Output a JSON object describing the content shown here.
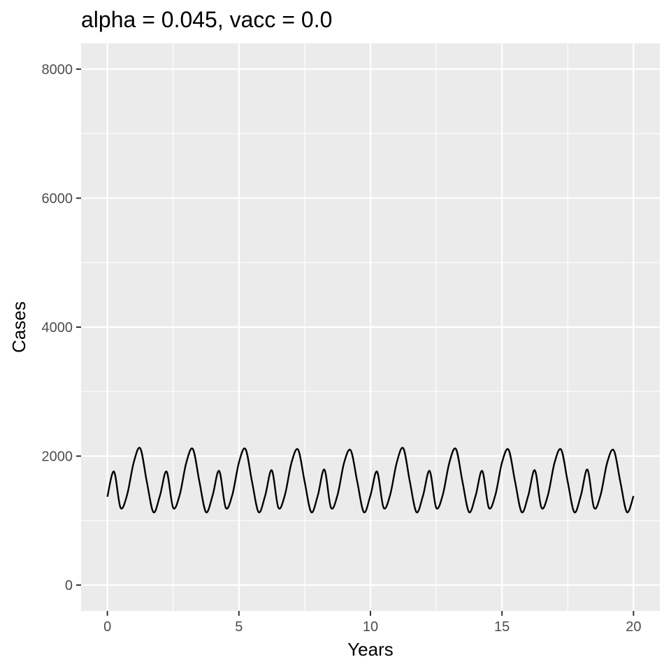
{
  "chart_data": {
    "type": "line",
    "title": "alpha = 0.045, vacc = 0.0",
    "xlabel": "Years",
    "ylabel": "Cases",
    "xlim": [
      -1,
      21
    ],
    "ylim": [
      -400,
      8400
    ],
    "x_ticks": [
      0,
      5,
      10,
      15,
      20
    ],
    "y_ticks": [
      0,
      2000,
      4000,
      6000,
      8000
    ],
    "x_tick_labels": [
      "0",
      "5",
      "10",
      "15",
      "20"
    ],
    "y_tick_labels": [
      "0",
      "2000",
      "4000",
      "6000",
      "8000"
    ],
    "grid": true,
    "legend": "none",
    "colors": {
      "panel": "#ebebeb",
      "grid": "#ffffff",
      "line": "#000000",
      "tick_text": "#4d4d4d",
      "tick_mark": "#333333"
    },
    "series": [
      {
        "x": [
          0.0,
          0.25,
          0.5,
          0.75,
          1.0,
          1.25,
          1.5,
          1.75,
          2.0,
          2.25,
          2.5,
          2.75,
          3.0,
          3.25,
          3.5,
          3.75,
          4.0,
          4.25,
          4.5,
          4.75,
          5.0,
          5.25,
          5.5,
          5.75,
          6.0,
          6.25,
          6.5,
          6.75,
          7.0,
          7.25,
          7.5,
          7.75,
          8.0,
          8.25,
          8.5,
          8.75,
          9.0,
          9.25,
          9.5,
          9.75,
          10.0,
          10.25,
          10.5,
          10.75,
          11.0,
          11.25,
          11.5,
          11.75,
          12.0,
          12.25,
          12.5,
          12.75,
          13.0,
          13.25,
          13.5,
          13.75,
          14.0,
          14.25,
          14.5,
          14.75,
          15.0,
          15.25,
          15.5,
          15.75,
          16.0,
          16.25,
          16.5,
          16.75,
          17.0,
          17.25,
          17.5,
          17.75,
          18.0,
          18.25,
          18.5,
          18.75,
          19.0,
          19.25,
          19.5,
          19.75,
          20.0
        ],
        "y": [
          1370,
          1760,
          1200,
          1400,
          1900,
          2120,
          1600,
          1130,
          1390,
          1760,
          1200,
          1400,
          1900,
          2110,
          1600,
          1130,
          1390,
          1770,
          1200,
          1400,
          1900,
          2110,
          1600,
          1130,
          1390,
          1780,
          1200,
          1400,
          1900,
          2100,
          1600,
          1130,
          1390,
          1790,
          1200,
          1400,
          1900,
          2090,
          1600,
          1130,
          1390,
          1760,
          1200,
          1400,
          1900,
          2120,
          1600,
          1130,
          1390,
          1770,
          1200,
          1400,
          1900,
          2110,
          1600,
          1130,
          1390,
          1770,
          1200,
          1400,
          1900,
          2100,
          1600,
          1130,
          1390,
          1780,
          1200,
          1400,
          1900,
          2100,
          1600,
          1130,
          1390,
          1790,
          1200,
          1400,
          1900,
          2090,
          1600,
          1130,
          1380
        ]
      }
    ]
  }
}
